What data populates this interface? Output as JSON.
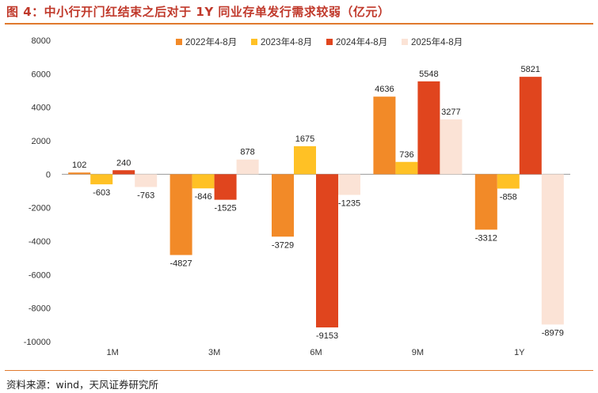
{
  "header": {
    "title": "图 4：中小行开门红结束之后对于 1Y 同业存单发行需求较弱（亿元）"
  },
  "footer": {
    "source": "资料来源：wind，天风证券研究所"
  },
  "colors": {
    "accent": "#e07a2e",
    "series": [
      "#f28a28",
      "#ffc125",
      "#e0451e",
      "#fbe3d6"
    ]
  },
  "chart_data": {
    "type": "bar",
    "categories": [
      "1M",
      "3M",
      "6M",
      "9M",
      "1Y"
    ],
    "series": [
      {
        "name": "2022年4-8月",
        "values": [
          102,
          -4827,
          -3729,
          4636,
          -3312
        ]
      },
      {
        "name": "2023年4-8月",
        "values": [
          -603,
          -846,
          1675,
          736,
          -858
        ]
      },
      {
        "name": "2024年4-8月",
        "values": [
          240,
          -1525,
          -9153,
          5548,
          5821
        ]
      },
      {
        "name": "2025年4-8月",
        "values": [
          -763,
          878,
          -1235,
          3277,
          -8979
        ]
      }
    ],
    "yticks": [
      8000,
      6000,
      4000,
      2000,
      0,
      -2000,
      -4000,
      -6000,
      -8000,
      -10000
    ],
    "ylim": [
      -10000,
      8000
    ],
    "legend_position": "top",
    "grid": false,
    "xlabel": "",
    "ylabel": ""
  }
}
